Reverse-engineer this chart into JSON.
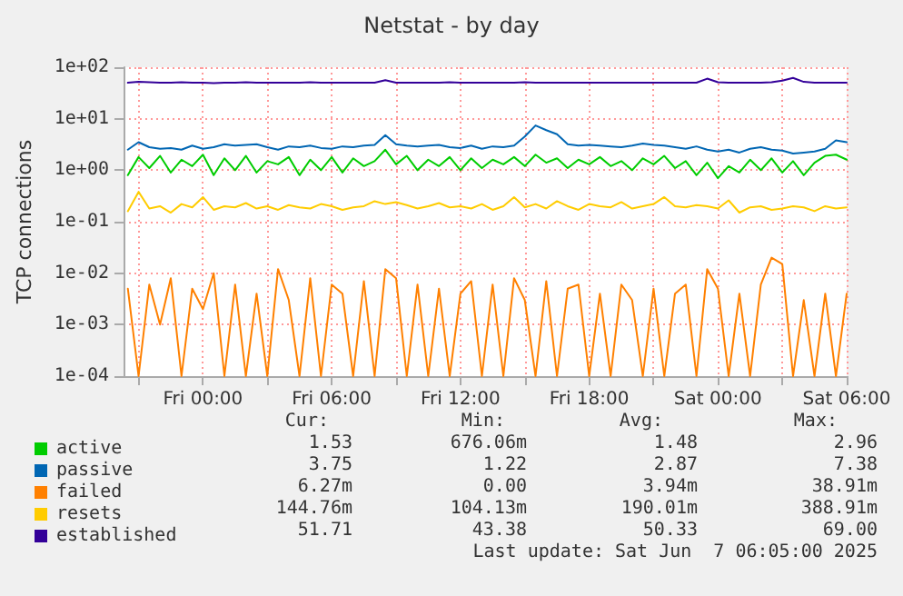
{
  "chart_data": {
    "type": "line",
    "title": "Netstat - by day",
    "ylabel": "TCP connections",
    "x": [
      "2025-06-05T20:30",
      "2025-06-05T21:00",
      "2025-06-05T21:30",
      "2025-06-05T22:00",
      "2025-06-05T22:30",
      "2025-06-05T23:00",
      "2025-06-05T23:30",
      "2025-06-06T00:00",
      "2025-06-06T00:30",
      "2025-06-06T01:00",
      "2025-06-06T01:30",
      "2025-06-06T02:00",
      "2025-06-06T02:30",
      "2025-06-06T03:00",
      "2025-06-06T03:30",
      "2025-06-06T04:00",
      "2025-06-06T04:30",
      "2025-06-06T05:00",
      "2025-06-06T05:30",
      "2025-06-06T06:00",
      "2025-06-06T06:30",
      "2025-06-06T07:00",
      "2025-06-06T07:30",
      "2025-06-06T08:00",
      "2025-06-06T08:30",
      "2025-06-06T09:00",
      "2025-06-06T09:30",
      "2025-06-06T10:00",
      "2025-06-06T10:30",
      "2025-06-06T11:00",
      "2025-06-06T11:30",
      "2025-06-06T12:00",
      "2025-06-06T12:30",
      "2025-06-06T13:00",
      "2025-06-06T13:30",
      "2025-06-06T14:00",
      "2025-06-06T14:30",
      "2025-06-06T15:00",
      "2025-06-06T15:30",
      "2025-06-06T16:00",
      "2025-06-06T16:30",
      "2025-06-06T17:00",
      "2025-06-06T17:30",
      "2025-06-06T18:00",
      "2025-06-06T18:30",
      "2025-06-06T19:00",
      "2025-06-06T19:30",
      "2025-06-06T20:00",
      "2025-06-06T20:30",
      "2025-06-06T21:00",
      "2025-06-06T21:30",
      "2025-06-06T22:00",
      "2025-06-06T22:30",
      "2025-06-06T23:00",
      "2025-06-06T23:30",
      "2025-06-07T00:00",
      "2025-06-07T00:30",
      "2025-06-07T01:00",
      "2025-06-07T01:30",
      "2025-06-07T02:00",
      "2025-06-07T02:30",
      "2025-06-07T03:00",
      "2025-06-07T03:30",
      "2025-06-07T04:00",
      "2025-06-07T04:30",
      "2025-06-07T05:00",
      "2025-06-07T05:30",
      "2025-06-07T06:00"
    ],
    "series": [
      {
        "name": "active",
        "color": "#00cc00",
        "values": [
          0.8,
          1.8,
          1.1,
          1.9,
          0.9,
          1.6,
          1.2,
          2,
          0.8,
          1.7,
          1,
          1.9,
          0.9,
          1.5,
          1.3,
          1.8,
          0.8,
          1.6,
          1,
          1.8,
          0.9,
          1.7,
          1.2,
          1.5,
          2.5,
          1.3,
          1.9,
          1,
          1.6,
          1.2,
          1.8,
          1,
          1.7,
          1.1,
          1.6,
          1.3,
          1.8,
          1.2,
          2,
          1.4,
          1.7,
          1.1,
          1.6,
          1.3,
          1.8,
          1.2,
          1.5,
          1,
          1.7,
          1.3,
          1.9,
          1.1,
          1.5,
          0.8,
          1.4,
          0.7,
          1.2,
          0.9,
          1.6,
          1,
          1.7,
          0.9,
          1.5,
          0.8,
          1.4,
          1.9,
          2,
          1.6
        ]
      },
      {
        "name": "passive",
        "color": "#0066b3",
        "values": [
          2.5,
          3.5,
          2.8,
          2.6,
          2.7,
          2.5,
          3,
          2.6,
          2.8,
          3.2,
          3,
          3.1,
          3.2,
          2.8,
          2.5,
          2.9,
          2.8,
          3,
          2.7,
          2.6,
          2.9,
          2.8,
          3,
          3.1,
          4.8,
          3.2,
          3,
          2.9,
          3,
          3.1,
          2.8,
          2.7,
          3,
          2.6,
          2.9,
          2.8,
          3,
          4.5,
          7.4,
          6,
          5,
          3.2,
          3,
          3.1,
          3,
          2.9,
          2.8,
          3,
          3.3,
          3.1,
          3,
          2.8,
          2.6,
          2.9,
          2.5,
          2.3,
          2.5,
          2.2,
          2.6,
          2.8,
          2.5,
          2.4,
          2.1,
          2.2,
          2.3,
          2.6,
          3.8,
          3.5
        ]
      },
      {
        "name": "failed",
        "color": "#ff8000",
        "values": [
          0.005,
          0.0001,
          0.006,
          0.001,
          0.008,
          0.0001,
          0.005,
          0.002,
          0.01,
          0.0001,
          0.006,
          0.0001,
          0.004,
          0.0001,
          0.012,
          0.003,
          0.0001,
          0.008,
          0.0001,
          0.006,
          0.004,
          0.0001,
          0.007,
          0.0001,
          0.012,
          0.008,
          0.0001,
          0.006,
          0.0001,
          0.005,
          0.0001,
          0.004,
          0.007,
          0.0001,
          0.006,
          0.0001,
          0.008,
          0.003,
          0.0001,
          0.007,
          0.0001,
          0.005,
          0.006,
          0.0001,
          0.004,
          0.0001,
          0.006,
          0.003,
          0.0001,
          0.005,
          0.0001,
          0.004,
          0.006,
          0.0001,
          0.012,
          0.005,
          0.0001,
          0.004,
          0.0001,
          0.006,
          0.02,
          0.015,
          0.0001,
          0.003,
          0.0001,
          0.004,
          0.0001,
          0.004
        ]
      },
      {
        "name": "resets",
        "color": "#ffcc00",
        "values": [
          0.16,
          0.38,
          0.18,
          0.2,
          0.15,
          0.22,
          0.19,
          0.3,
          0.17,
          0.2,
          0.19,
          0.23,
          0.18,
          0.2,
          0.17,
          0.21,
          0.19,
          0.18,
          0.22,
          0.2,
          0.17,
          0.19,
          0.2,
          0.25,
          0.22,
          0.24,
          0.21,
          0.18,
          0.2,
          0.23,
          0.19,
          0.2,
          0.18,
          0.22,
          0.17,
          0.2,
          0.3,
          0.19,
          0.22,
          0.18,
          0.25,
          0.2,
          0.17,
          0.22,
          0.2,
          0.19,
          0.24,
          0.18,
          0.2,
          0.22,
          0.3,
          0.2,
          0.19,
          0.21,
          0.2,
          0.18,
          0.26,
          0.15,
          0.19,
          0.2,
          0.17,
          0.18,
          0.2,
          0.19,
          0.16,
          0.2,
          0.18,
          0.19
        ]
      },
      {
        "name": "established",
        "color": "#330099",
        "values": [
          50,
          52,
          51,
          50,
          50,
          51,
          50,
          50,
          49,
          50,
          50,
          51,
          50,
          50,
          50,
          50,
          50,
          51,
          50,
          50,
          50,
          50,
          50,
          50,
          56,
          50,
          50,
          50,
          50,
          50,
          51,
          50,
          50,
          50,
          50,
          50,
          50,
          51,
          50,
          50,
          50,
          50,
          50,
          50,
          50,
          50,
          50,
          50,
          50,
          50,
          50,
          50,
          50,
          50,
          60,
          51,
          50,
          50,
          50,
          50,
          51,
          55,
          62,
          52,
          50,
          50,
          50,
          50
        ]
      }
    ],
    "xlim": [
      "2025-06-05T20:18",
      "2025-06-07T06:00"
    ],
    "xticks": [
      {
        "value": "2025-06-05T21:00",
        "label": null
      },
      {
        "value": "2025-06-06T00:00",
        "label": "Fri 00:00"
      },
      {
        "value": "2025-06-06T03:00",
        "label": null
      },
      {
        "value": "2025-06-06T06:00",
        "label": "Fri 06:00"
      },
      {
        "value": "2025-06-06T09:00",
        "label": null
      },
      {
        "value": "2025-06-06T12:00",
        "label": "Fri 12:00"
      },
      {
        "value": "2025-06-06T15:00",
        "label": null
      },
      {
        "value": "2025-06-06T18:00",
        "label": "Fri 18:00"
      },
      {
        "value": "2025-06-06T21:00",
        "label": null
      },
      {
        "value": "2025-06-07T00:00",
        "label": "Sat 00:00"
      },
      {
        "value": "2025-06-07T03:00",
        "label": null
      },
      {
        "value": "2025-06-07T06:00",
        "label": "Sat 06:00"
      }
    ],
    "ylim": [
      0.0001,
      100
    ],
    "yticks": [
      {
        "value": 0.0001,
        "label": "1e-04"
      },
      {
        "value": 0.001,
        "label": "1e-03"
      },
      {
        "value": 0.01,
        "label": "1e-02"
      },
      {
        "value": 0.1,
        "label": "1e-01"
      },
      {
        "value": 1,
        "label": "1e+00"
      },
      {
        "value": 10,
        "label": "1e+01"
      },
      {
        "value": 100,
        "label": "1e+02"
      }
    ],
    "log": "y",
    "grid": true,
    "legend": "bottom",
    "marker": "none",
    "line_style": "solid",
    "annotations": [
      "Cur:",
      "Min:",
      "Avg:",
      "Max:",
      "1.53",
      "676.06m",
      "1.48",
      "2.96",
      "3.75",
      "1.22",
      "2.87",
      "7.38",
      "6.27m",
      "0.00",
      "3.94m",
      "38.91m",
      "144.76m",
      "104.13m",
      "190.01m",
      "388.91m",
      "51.71",
      "43.38",
      "50.33",
      "69.00",
      "Last update: Sat Jun  7 06:05:00 2025"
    ]
  }
}
